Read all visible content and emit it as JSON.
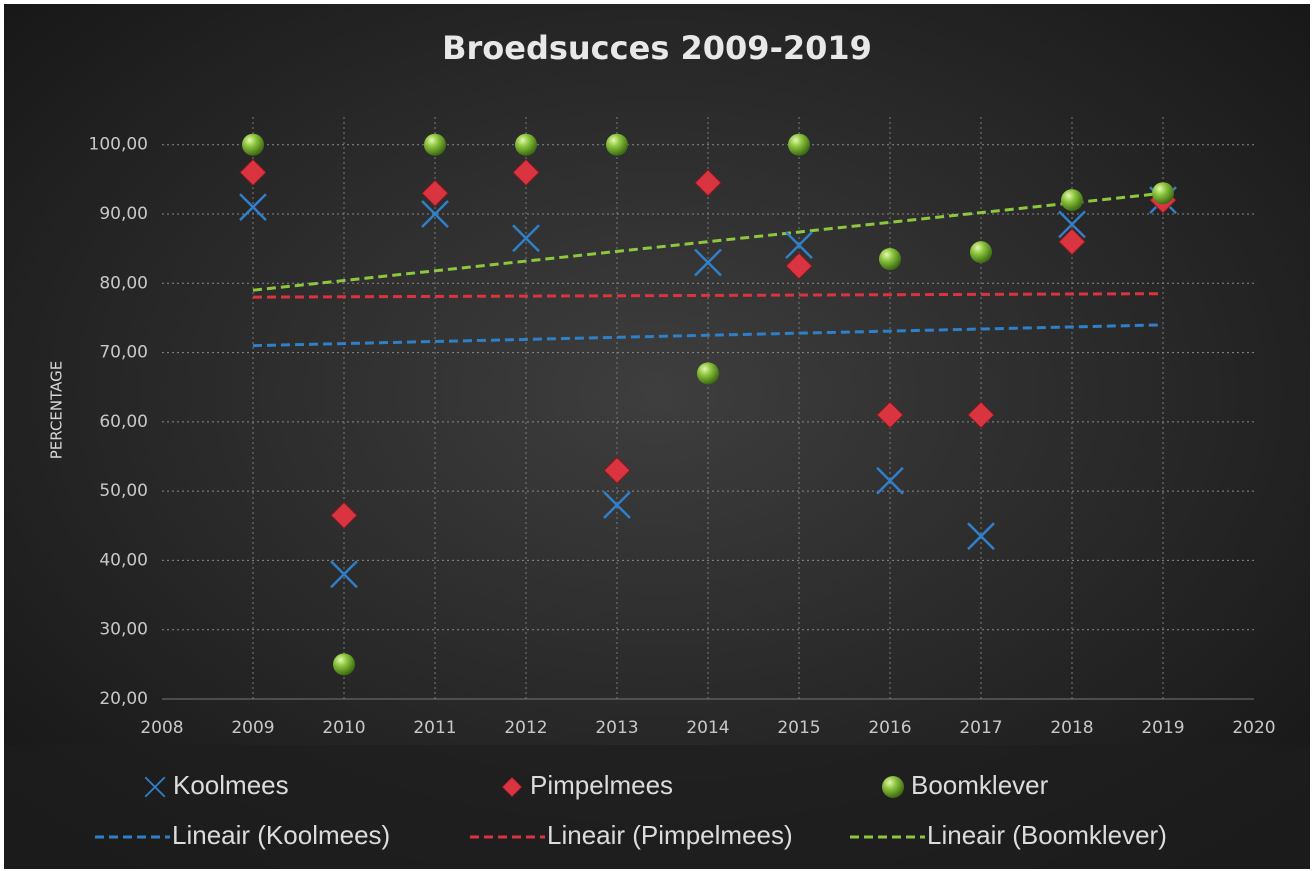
{
  "chart_data": {
    "type": "scatter",
    "title": "Broedsucces 2009-2019",
    "ylabel": "PERCENTAGE",
    "x": [
      2009,
      2010,
      2011,
      2012,
      2013,
      2014,
      2015,
      2016,
      2017,
      2018,
      2019
    ],
    "series": [
      {
        "name": "Koolmees",
        "color": "#2f7fc9",
        "marker": "x",
        "values": [
          91,
          38,
          90,
          86.5,
          48,
          83,
          85.5,
          51.5,
          43.5,
          88.5,
          92
        ]
      },
      {
        "name": "Pimpelmees",
        "color": "#d9343f",
        "marker": "diamond",
        "values": [
          96,
          46.5,
          93,
          96,
          53,
          94.5,
          82.5,
          61,
          61,
          86,
          92
        ]
      },
      {
        "name": "Boomklever",
        "color": "#8dc63f",
        "marker": "circle",
        "values": [
          100,
          25,
          100,
          100,
          100,
          67,
          100,
          83.5,
          84.5,
          92,
          93
        ]
      },
      {
        "name": "Lineair (Koolmees)",
        "color": "#2f7fc9",
        "line": "dashed",
        "x": [
          2009,
          2019
        ],
        "values": [
          71,
          74
        ]
      },
      {
        "name": "Lineair (Pimpelmees)",
        "color": "#d9343f",
        "line": "dashed",
        "x": [
          2009,
          2019
        ],
        "values": [
          78,
          78.5
        ]
      },
      {
        "name": "Lineair (Boomklever)",
        "color": "#8dc63f",
        "line": "dashed",
        "x": [
          2009,
          2019
        ],
        "values": [
          79,
          93
        ]
      }
    ],
    "xlim": [
      2008,
      2020
    ],
    "xticks": [
      2008,
      2009,
      2010,
      2011,
      2012,
      2013,
      2014,
      2015,
      2016,
      2017,
      2018,
      2019,
      2020
    ],
    "ylim": [
      20,
      104
    ],
    "yticks": [
      {
        "value": 20,
        "label": "20,00"
      },
      {
        "value": 30,
        "label": "30,00"
      },
      {
        "value": 40,
        "label": "40,00"
      },
      {
        "value": 50,
        "label": "50,00"
      },
      {
        "value": 60,
        "label": "60,00"
      },
      {
        "value": 70,
        "label": "70,00"
      },
      {
        "value": 80,
        "label": "80,00"
      },
      {
        "value": 90,
        "label": "90,00"
      },
      {
        "value": 100,
        "label": "100,00"
      }
    ],
    "grid": true,
    "legend": "bottom"
  }
}
